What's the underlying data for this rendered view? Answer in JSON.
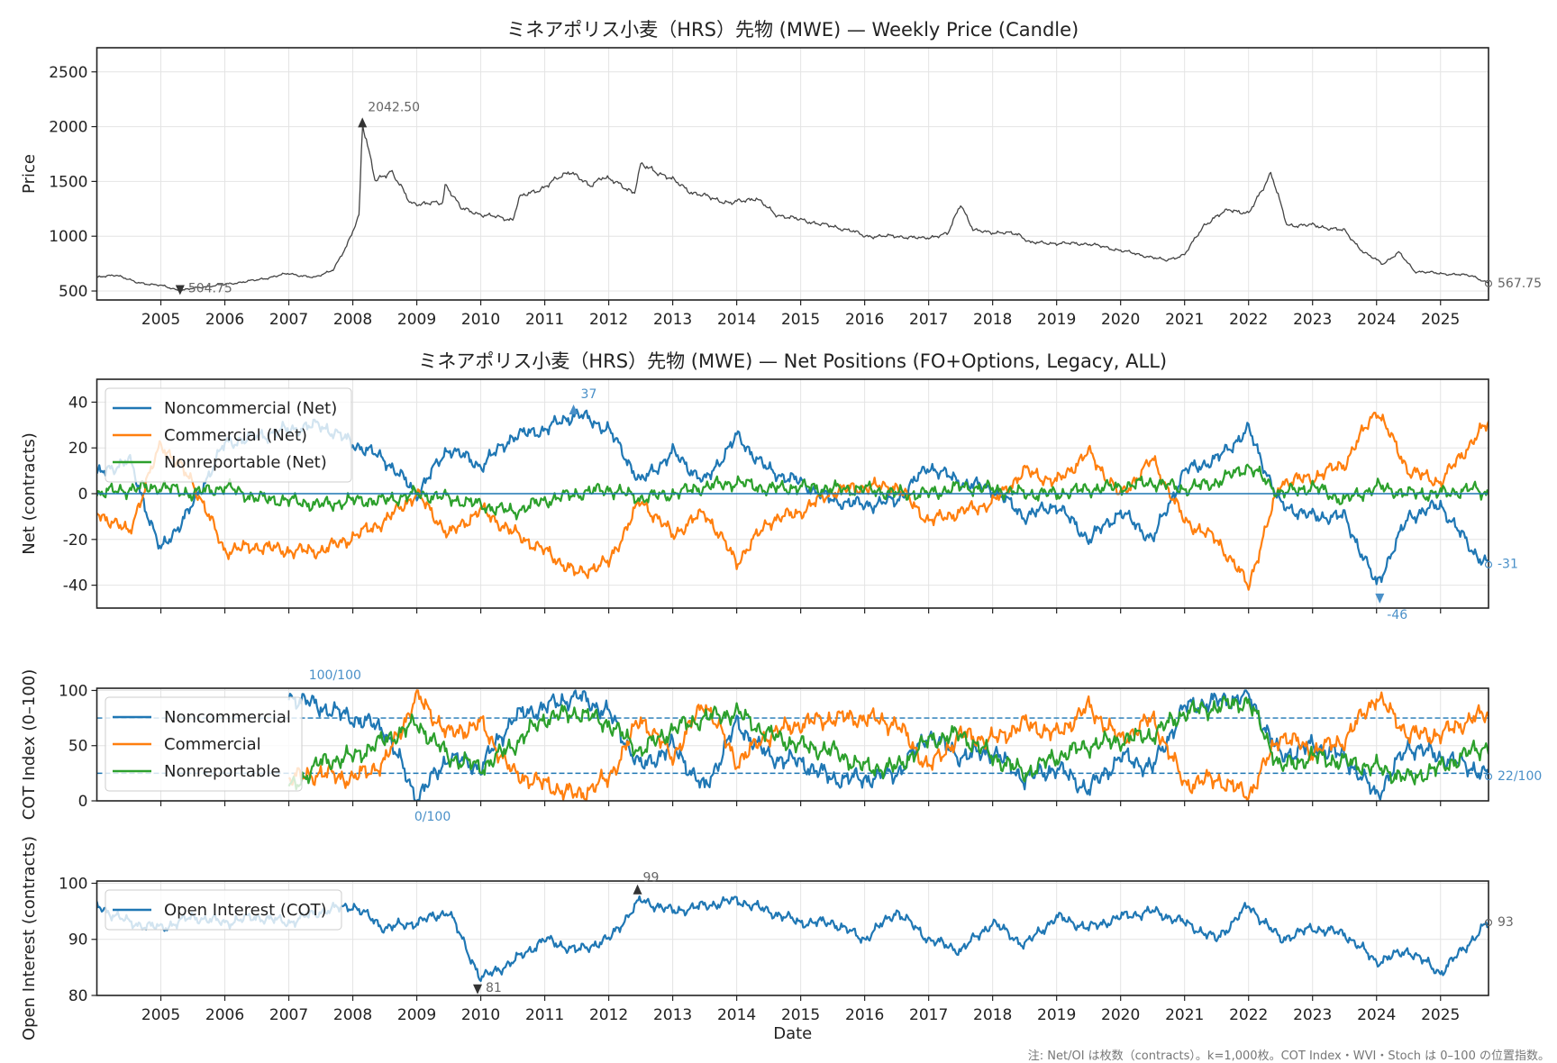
{
  "footnote": "注: Net/OI は枚数（contracts）。k=1,000枚。COT Index・WVI・Stoch は 0–100 の位置指数。",
  "colors": {
    "noncommercial": "#1f77b4",
    "commercial": "#ff7f0e",
    "nonreportable": "#2ca02c",
    "price": "#444444",
    "annotation_blue": "#4a90c8",
    "annotation_gray": "#666666"
  },
  "chart_data": [
    {
      "type": "line",
      "title": "ミネアポリス小麦（HRS）先物 (MWE) — Weekly Price (Candle)",
      "xlabel": "",
      "ylabel": "Price",
      "xlim": [
        2004.0,
        2025.75
      ],
      "ylim": [
        418,
        2720
      ],
      "yticks": [
        500,
        1000,
        1500,
        2000,
        2500
      ],
      "xticks": [
        "2005",
        "2006",
        "2007",
        "2008",
        "2009",
        "2010",
        "2011",
        "2012",
        "2013",
        "2014",
        "2015",
        "2016",
        "2017",
        "2018",
        "2019",
        "2020",
        "2021",
        "2022",
        "2023",
        "2024",
        "2025"
      ],
      "grid": true,
      "x": [
        2004.0,
        2004.3,
        2004.6,
        2005.0,
        2005.3,
        2005.7,
        2006.0,
        2006.5,
        2007.0,
        2007.4,
        2007.7,
        2007.9,
        2008.1,
        2008.15,
        2008.35,
        2008.6,
        2008.9,
        2009.4,
        2009.45,
        2009.7,
        2010.0,
        2010.5,
        2010.6,
        2011.0,
        2011.4,
        2011.7,
        2011.9,
        2012.4,
        2012.5,
        2012.9,
        2013.3,
        2013.9,
        2014.3,
        2014.6,
        2015.0,
        2015.4,
        2015.8,
        2016.0,
        2016.5,
        2016.9,
        2017.3,
        2017.5,
        2017.7,
        2018.4,
        2018.6,
        2019.5,
        2020.0,
        2020.7,
        2021.0,
        2021.3,
        2021.7,
        2022.0,
        2022.35,
        2022.6,
        2023.0,
        2023.5,
        2023.8,
        2024.1,
        2024.35,
        2024.6,
        2025.0,
        2025.5,
        2025.75
      ],
      "values": [
        620,
        650,
        580,
        550,
        505,
        540,
        560,
        600,
        660,
        620,
        700,
        900,
        1200,
        2042.5,
        1500,
        1600,
        1300,
        1300,
        1480,
        1250,
        1200,
        1150,
        1350,
        1450,
        1600,
        1450,
        1550,
        1400,
        1650,
        1550,
        1400,
        1300,
        1350,
        1200,
        1150,
        1100,
        1050,
        1000,
        1000,
        980,
        1020,
        1300,
        1050,
        1020,
        940,
        930,
        870,
        780,
        830,
        1100,
        1250,
        1200,
        1580,
        1100,
        1100,
        1050,
        850,
        750,
        850,
        680,
        660,
        640,
        567.75
      ],
      "annotations": [
        {
          "label": "2042.50",
          "x": 2008.15,
          "y": 2042.5,
          "marker": "up"
        },
        {
          "label": "504.75",
          "x": 2005.3,
          "y": 504.75,
          "marker": "down"
        },
        {
          "label": "567.75",
          "x": 2025.75,
          "y": 567.75,
          "marker": "last"
        }
      ]
    },
    {
      "type": "line",
      "title": "ミネアポリス小麦（HRS）先物 (MWE) — Net Positions (FO+Options, Legacy, ALL)",
      "ylabel": "Net (contracts)",
      "xlim": [
        2004.0,
        2025.75
      ],
      "ylim": [
        -50,
        50
      ],
      "yticks": [
        -40,
        -20,
        0,
        20,
        40
      ],
      "grid": true,
      "legend": "upper-left",
      "x": [
        2004.0,
        2004.5,
        2005.0,
        2005.5,
        2006.0,
        2006.5,
        2007.0,
        2007.5,
        2008.0,
        2008.5,
        2009.0,
        2009.5,
        2010.0,
        2010.5,
        2011.0,
        2011.5,
        2012.0,
        2012.5,
        2013.0,
        2013.5,
        2014.0,
        2014.5,
        2015.0,
        2015.5,
        2016.0,
        2016.5,
        2017.0,
        2017.5,
        2018.0,
        2018.5,
        2019.0,
        2019.5,
        2020.0,
        2020.5,
        2021.0,
        2021.5,
        2022.0,
        2022.5,
        2023.0,
        2023.5,
        2024.0,
        2024.5,
        2025.0,
        2025.5,
        2025.75
      ],
      "series": [
        {
          "name": "Noncommercial (Net)",
          "key": "noncommercial",
          "values": [
            8,
            15,
            -25,
            -5,
            22,
            25,
            28,
            30,
            22,
            15,
            0,
            20,
            12,
            25,
            28,
            35,
            28,
            5,
            18,
            5,
            25,
            10,
            5,
            -3,
            -5,
            -3,
            12,
            5,
            2,
            -10,
            -5,
            -20,
            -8,
            -20,
            10,
            15,
            28,
            -5,
            -10,
            -10,
            -40,
            -10,
            -5,
            -25,
            -31
          ]
        },
        {
          "name": "Commercial (Net)",
          "key": "commercial",
          "values": [
            -8,
            -17,
            22,
            5,
            -25,
            -23,
            -25,
            -25,
            -19,
            -12,
            0,
            -18,
            -7,
            -17,
            -25,
            -35,
            -30,
            -3,
            -18,
            -8,
            -30,
            -12,
            -8,
            1,
            3,
            3,
            -12,
            -8,
            -4,
            10,
            5,
            18,
            -1,
            15,
            -12,
            -20,
            -40,
            5,
            7,
            13,
            37,
            10,
            5,
            23,
            31
          ]
        },
        {
          "name": "Nonreportable (Net)",
          "key": "nonreportable",
          "values": [
            0,
            2,
            3,
            0,
            3,
            -2,
            -3,
            -5,
            -3,
            -3,
            0,
            -2,
            -5,
            -8,
            -3,
            0,
            2,
            -2,
            0,
            3,
            5,
            2,
            3,
            2,
            2,
            0,
            0,
            3,
            2,
            0,
            0,
            2,
            3,
            5,
            2,
            5,
            12,
            0,
            3,
            -3,
            3,
            0,
            0,
            2,
            0
          ]
        }
      ],
      "reference_line": 0,
      "annotations": [
        {
          "label": "37",
          "x": 2011.45,
          "y": 37,
          "marker": "up"
        },
        {
          "label": "-46",
          "x": 2024.05,
          "y": -46,
          "marker": "down"
        },
        {
          "label": "-31",
          "x": 2025.75,
          "y": -31,
          "marker": "last"
        }
      ]
    },
    {
      "type": "line",
      "ylabel": "COT Index (0–100)",
      "xlim": [
        2004.0,
        2025.75
      ],
      "ylim": [
        0,
        102
      ],
      "yticks": [
        0,
        50,
        100
      ],
      "grid": true,
      "legend": "upper-left",
      "threshold_lines": [
        25,
        75
      ],
      "x": [
        2007.0,
        2007.5,
        2008.0,
        2008.5,
        2009.0,
        2009.5,
        2010.0,
        2010.5,
        2011.0,
        2011.5,
        2012.0,
        2012.5,
        2013.0,
        2013.5,
        2014.0,
        2014.5,
        2015.0,
        2015.5,
        2016.0,
        2016.5,
        2017.0,
        2017.5,
        2018.0,
        2018.5,
        2019.0,
        2019.5,
        2020.0,
        2020.5,
        2021.0,
        2021.5,
        2022.0,
        2022.5,
        2023.0,
        2023.5,
        2024.0,
        2024.5,
        2025.0,
        2025.5,
        2025.75
      ],
      "series": [
        {
          "name": "Noncommercial",
          "key": "noncommercial",
          "values": [
            95,
            85,
            75,
            65,
            2,
            40,
            30,
            75,
            85,
            95,
            80,
            30,
            50,
            10,
            70,
            40,
            35,
            20,
            20,
            25,
            60,
            40,
            45,
            20,
            30,
            10,
            40,
            30,
            85,
            90,
            95,
            40,
            50,
            40,
            5,
            50,
            40,
            30,
            22
          ]
        },
        {
          "name": "Commercial",
          "key": "commercial",
          "values": [
            20,
            25,
            20,
            35,
            95,
            60,
            70,
            25,
            15,
            5,
            20,
            75,
            40,
            90,
            35,
            60,
            70,
            75,
            75,
            70,
            30,
            60,
            55,
            70,
            60,
            85,
            55,
            75,
            15,
            20,
            5,
            60,
            45,
            55,
            95,
            60,
            60,
            75,
            78
          ]
        },
        {
          "name": "Nonreportable",
          "key": "nonreportable",
          "values": [
            10,
            35,
            40,
            55,
            70,
            40,
            30,
            50,
            75,
            80,
            70,
            45,
            65,
            75,
            80,
            60,
            50,
            45,
            30,
            30,
            55,
            60,
            40,
            25,
            40,
            50,
            55,
            60,
            80,
            85,
            90,
            30,
            40,
            35,
            30,
            20,
            30,
            45,
            50
          ]
        }
      ],
      "annotations": [
        {
          "label": "100/100",
          "x": 2007.2,
          "y": 100
        },
        {
          "label": "0/100",
          "x": 2008.85,
          "y": 0
        },
        {
          "label": "22/100",
          "x": 2025.75,
          "y": 22,
          "marker": "last"
        }
      ]
    },
    {
      "type": "line",
      "ylabel": "Open Interest (contracts)",
      "xlabel": "Date",
      "xlim": [
        2004.0,
        2025.75
      ],
      "ylim": [
        80,
        100.4
      ],
      "yticks": [
        80,
        90,
        100
      ],
      "xticks": [
        "2005",
        "2006",
        "2007",
        "2008",
        "2009",
        "2010",
        "2011",
        "2012",
        "2013",
        "2014",
        "2015",
        "2016",
        "2017",
        "2018",
        "2019",
        "2020",
        "2021",
        "2022",
        "2023",
        "2024",
        "2025"
      ],
      "grid": true,
      "legend": "upper-left",
      "x": [
        2004.0,
        2004.5,
        2005.0,
        2005.5,
        2006.0,
        2006.5,
        2007.0,
        2007.5,
        2008.0,
        2008.5,
        2009.0,
        2009.5,
        2010.0,
        2010.5,
        2011.0,
        2011.5,
        2012.0,
        2012.5,
        2013.0,
        2013.5,
        2014.0,
        2014.5,
        2015.0,
        2015.5,
        2016.0,
        2016.5,
        2017.0,
        2017.5,
        2018.0,
        2018.5,
        2019.0,
        2019.5,
        2020.0,
        2020.5,
        2021.0,
        2021.5,
        2022.0,
        2022.5,
        2023.0,
        2023.5,
        2024.0,
        2024.5,
        2025.0,
        2025.5,
        2025.75
      ],
      "series": [
        {
          "name": "Open Interest (COT)",
          "key": "noncommercial",
          "values": [
            96,
            93,
            92,
            94,
            93,
            94,
            93,
            95,
            96,
            92,
            93,
            95,
            83,
            86,
            90,
            88,
            90,
            97,
            95,
            96,
            97,
            95,
            93,
            93,
            90,
            95,
            90,
            88,
            93,
            89,
            94,
            92,
            94,
            95,
            93,
            90,
            96,
            90,
            92,
            91,
            86,
            88,
            84,
            90,
            93
          ]
        }
      ],
      "annotations": [
        {
          "label": "99",
          "x": 2012.45,
          "y": 99,
          "marker": "up"
        },
        {
          "label": "81",
          "x": 2009.95,
          "y": 81,
          "marker": "down"
        },
        {
          "label": "93",
          "x": 2025.75,
          "y": 93,
          "marker": "last"
        }
      ]
    }
  ]
}
